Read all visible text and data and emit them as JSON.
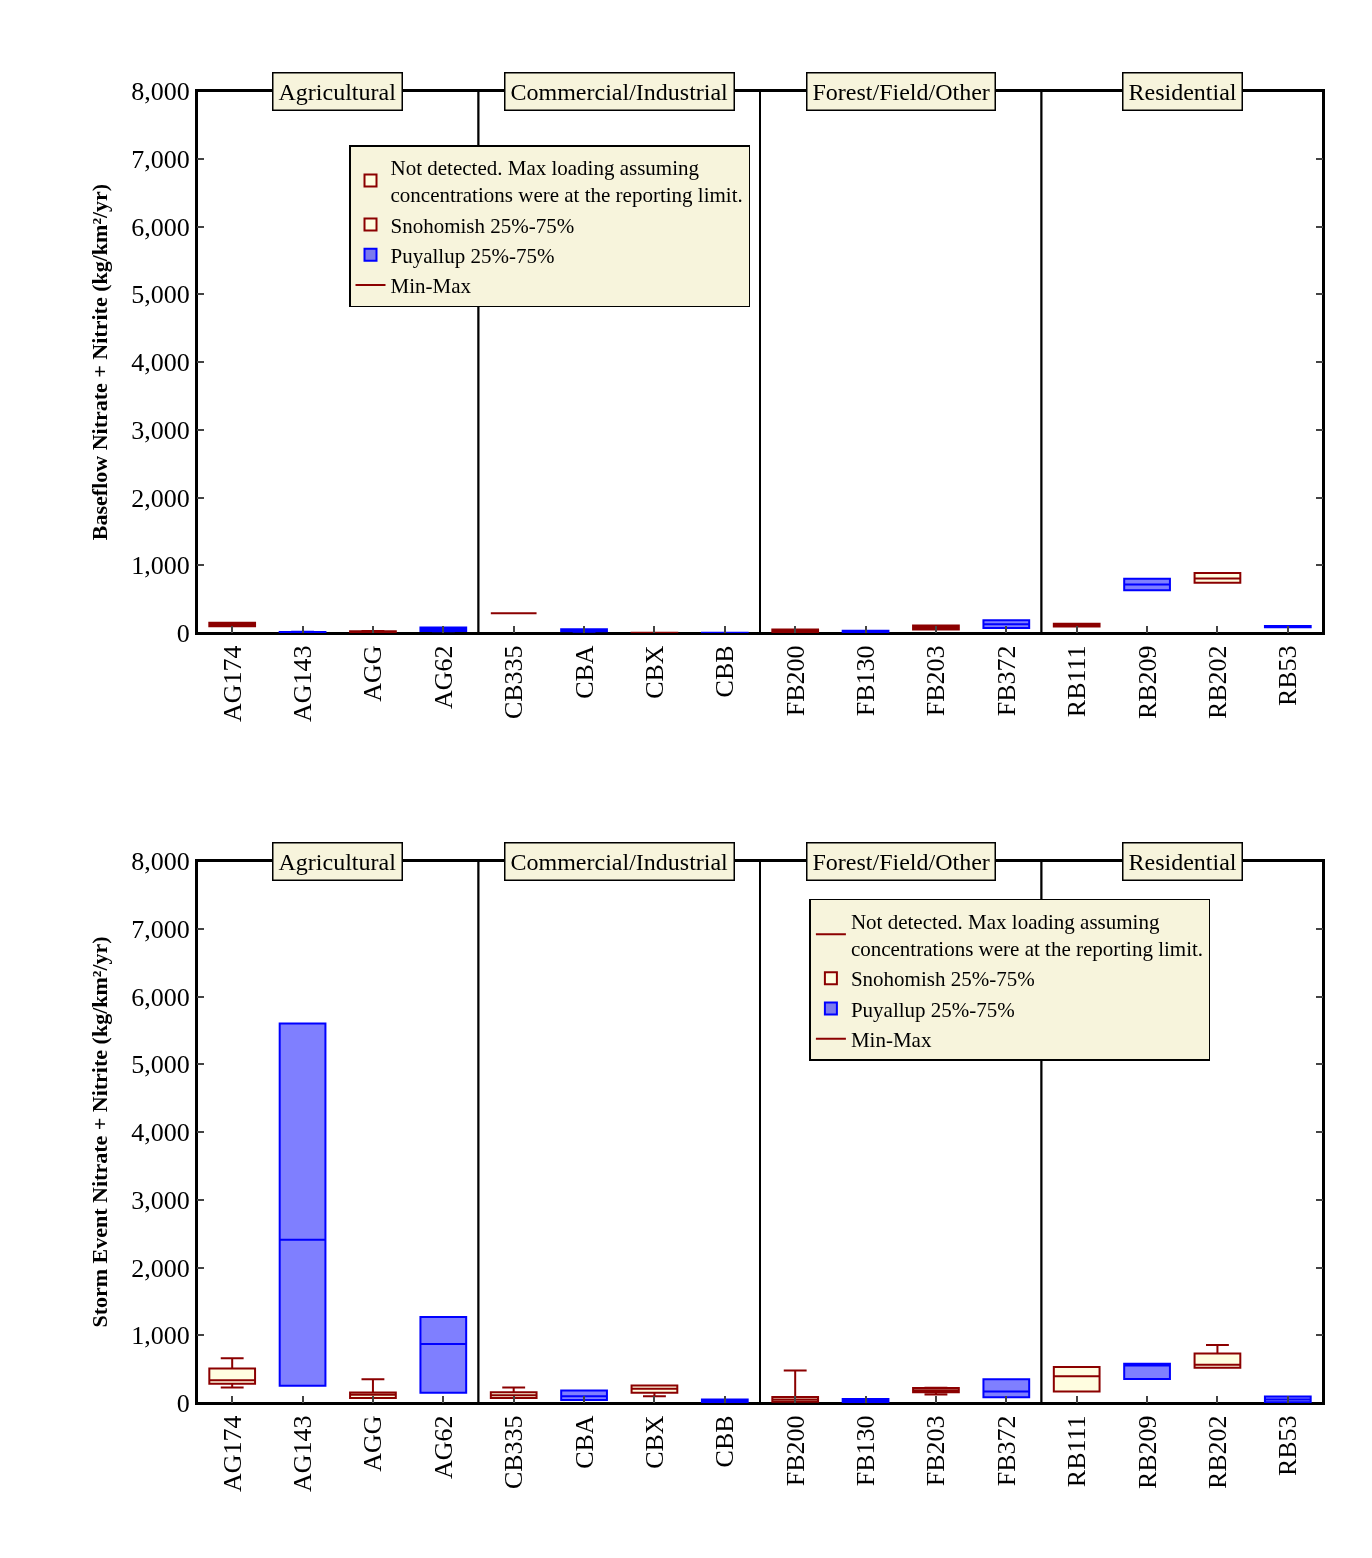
{
  "chart_data": [
    {
      "type": "box",
      "ylabel": "Baseflow Nitrate + Nitrite (kg/km²/yr)",
      "categories": [
        "AG174",
        "AG143",
        "AGG",
        "AG62",
        "CB335",
        "CBA",
        "CBX",
        "CBB",
        "FB200",
        "FB130",
        "FB203",
        "FB372",
        "RB111",
        "RB209",
        "RB202",
        "RB53"
      ],
      "bands": [
        {
          "axis": "x",
          "from": "AG174",
          "to": "AG62",
          "label": "Agricultural",
          "color": "#ffffff"
        },
        {
          "axis": "x",
          "from": "CB335",
          "to": "CBB",
          "label": "Commercial/Industrial",
          "color": "#ffffff"
        },
        {
          "axis": "x",
          "from": "FB200",
          "to": "FB372",
          "label": "Forest/Field/Other",
          "color": "#ffffff"
        },
        {
          "axis": "x",
          "from": "RB111",
          "to": "RB53",
          "label": "Residential",
          "color": "#ffffff"
        }
      ],
      "ylim": [
        0,
        8000
      ],
      "yticks": [
        0,
        {
          "value": 1000,
          "label": "1,000"
        },
        {
          "value": 2000,
          "label": "2,000"
        },
        {
          "value": 3000,
          "label": "3,000"
        },
        {
          "value": 4000,
          "label": "4,000"
        },
        {
          "value": 5000,
          "label": "5,000"
        },
        {
          "value": 6000,
          "label": "6,000"
        },
        {
          "value": 7000,
          "label": "7,000"
        },
        {
          "value": 8000,
          "label": "8,000"
        }
      ],
      "grid": false,
      "legend": "top left",
      "series": [
        {
          "name": "Not detected. Max loading assuming concentrations were at the reporting limit.",
          "color": "#8b0000",
          "boxes": [
            null,
            null,
            null,
            null,
            {
              "low": 290,
              "q1": 290,
              "median": 290,
              "q3": 290,
              "high": 290
            },
            null,
            null,
            null,
            null,
            null,
            null,
            null,
            null,
            null,
            null,
            null
          ]
        },
        {
          "name": "Snohomish 25%-75%",
          "color": "#8b0000",
          "boxes": [
            {
              "low": 100,
              "q1": 100,
              "median": 120,
              "q3": 150,
              "high": 150
            },
            null,
            {
              "low": 10,
              "q1": 10,
              "median": 15,
              "q3": 25,
              "high": 30
            },
            null,
            null,
            null,
            {
              "low": 0,
              "q1": 2,
              "median": 3,
              "q3": 5,
              "high": 5
            },
            null,
            {
              "low": 10,
              "q1": 10,
              "median": 30,
              "q3": 50,
              "high": 50
            },
            null,
            {
              "low": 50,
              "q1": 50,
              "median": 80,
              "q3": 110,
              "high": 110
            },
            null,
            {
              "low": 95,
              "q1": 95,
              "median": 115,
              "q3": 135,
              "high": 135
            },
            null,
            {
              "low": 740,
              "q1": 740,
              "median": 806,
              "q3": 885,
              "high": 885
            },
            null
          ]
        },
        {
          "name": "Puyallup 25%-75%",
          "color": "#0000ff",
          "boxes": [
            null,
            {
              "low": 0,
              "q1": 5,
              "median": 10,
              "q3": 15,
              "high": 20
            },
            null,
            {
              "low": 25,
              "q1": 30,
              "median": 50,
              "q3": 80,
              "high": 80
            },
            null,
            {
              "low": 20,
              "q1": 25,
              "median": 40,
              "q3": 55,
              "high": 55
            },
            null,
            {
              "low": 0,
              "q1": 2,
              "median": 3,
              "q3": 5,
              "high": 5
            },
            null,
            {
              "low": 10,
              "q1": 10,
              "median": 20,
              "q3": 35,
              "high": 35
            },
            null,
            {
              "low": 75,
              "q1": 75,
              "median": 130,
              "q3": 190,
              "high": 190
            },
            null,
            {
              "low": 630,
              "q1": 630,
              "median": 715,
              "q3": 800,
              "high": 800
            },
            null,
            {
              "low": 85,
              "q1": 85,
              "median": 95,
              "q3": 105,
              "high": 105
            }
          ]
        },
        {
          "name": "Min-Max",
          "color": "#8b0000",
          "type": "line",
          "values": [
            null,
            null,
            null,
            null,
            null,
            null,
            null,
            null,
            null,
            null,
            null,
            null,
            null,
            null,
            null,
            null
          ]
        }
      ]
    },
    {
      "type": "box",
      "ylabel": "Storm Event Nitrate + Nitrite (kg/km²/yr)",
      "categories": [
        "AG174",
        "AG143",
        "AGG",
        "AG62",
        "CB335",
        "CBA",
        "CBX",
        "CBB",
        "FB200",
        "FB130",
        "FB203",
        "FB372",
        "RB111",
        "RB209",
        "RB202",
        "RB53"
      ],
      "bands": [
        {
          "axis": "x",
          "from": "AG174",
          "to": "AG62",
          "label": "Agricultural",
          "color": "#ffffff"
        },
        {
          "axis": "x",
          "from": "CB335",
          "to": "CBB",
          "label": "Commercial/Industrial",
          "color": "#ffffff"
        },
        {
          "axis": "x",
          "from": "FB200",
          "to": "FB372",
          "label": "Forest/Field/Other",
          "color": "#ffffff"
        },
        {
          "axis": "x",
          "from": "RB111",
          "to": "RB53",
          "label": "Residential",
          "color": "#ffffff"
        }
      ],
      "ylim": [
        0,
        8000
      ],
      "yticks": [
        0,
        {
          "value": 1000,
          "label": "1,000"
        },
        {
          "value": 2000,
          "label": "2,000"
        },
        {
          "value": 3000,
          "label": "3,000"
        },
        {
          "value": 4000,
          "label": "4,000"
        },
        {
          "value": 5000,
          "label": "5,000"
        },
        {
          "value": 6000,
          "label": "6,000"
        },
        {
          "value": 7000,
          "label": "7,000"
        },
        {
          "value": 8000,
          "label": "8,000"
        }
      ],
      "grid": false,
      "legend": "top right",
      "series": [
        {
          "name": "Not detected. Max loading assuming concentrations were at the reporting limit.",
          "color": "#8b0000",
          "boxes": [
            null,
            null,
            null,
            null,
            null,
            null,
            null,
            null,
            null,
            null,
            null,
            null,
            null,
            null,
            null,
            null
          ]
        },
        {
          "name": "Snohomish 25%-75%",
          "color": "#8b0000",
          "boxes": [
            {
              "low": 230,
              "q1": 285,
              "median": 335,
              "q3": 510,
              "high": 660
            },
            null,
            {
              "low": 75,
              "q1": 75,
              "median": 120,
              "q3": 155,
              "high": 350
            },
            null,
            {
              "low": 75,
              "q1": 75,
              "median": 115,
              "q3": 160,
              "high": 230
            },
            null,
            {
              "low": 100,
              "q1": 150,
              "median": 210,
              "q3": 260,
              "high": 260
            },
            null,
            {
              "low": 20,
              "q1": 20,
              "median": 50,
              "q3": 90,
              "high": 480
            },
            null,
            {
              "low": 125,
              "q1": 160,
              "median": 190,
              "q3": 220,
              "high": 225
            },
            null,
            {
              "low": 170,
              "q1": 170,
              "median": 395,
              "q3": 530,
              "high": 530
            },
            null,
            {
              "low": 520,
              "q1": 520,
              "median": 565,
              "q3": 730,
              "high": 855
            },
            null
          ]
        },
        {
          "name": "Puyallup 25%-75%",
          "color": "#0000ff",
          "boxes": [
            null,
            {
              "low": 255,
              "q1": 255,
              "median": 2410,
              "q3": 5600,
              "high": 5600
            },
            null,
            {
              "low": 150,
              "q1": 150,
              "median": 870,
              "q3": 1270,
              "high": 1270
            },
            null,
            {
              "low": 45,
              "q1": 45,
              "median": 100,
              "q3": 185,
              "high": 185
            },
            null,
            {
              "low": 5,
              "q1": 5,
              "median": 25,
              "q3": 50,
              "high": 50
            },
            null,
            {
              "low": 10,
              "q1": 10,
              "median": 40,
              "q3": 60,
              "high": 60
            },
            null,
            {
              "low": 85,
              "q1": 85,
              "median": 170,
              "q3": 350,
              "high": 350
            },
            null,
            {
              "low": 355,
              "q1": 355,
              "median": 555,
              "q3": 580,
              "high": 580
            },
            null,
            {
              "low": 10,
              "q1": 10,
              "median": 50,
              "q3": 95,
              "high": 95
            }
          ]
        },
        {
          "name": "Min-Max",
          "color": "#8b0000",
          "type": "line",
          "values": [
            null,
            null,
            null,
            null,
            null,
            null,
            null,
            null,
            null,
            null,
            null,
            null,
            null,
            null,
            null,
            null
          ]
        }
      ]
    }
  ]
}
